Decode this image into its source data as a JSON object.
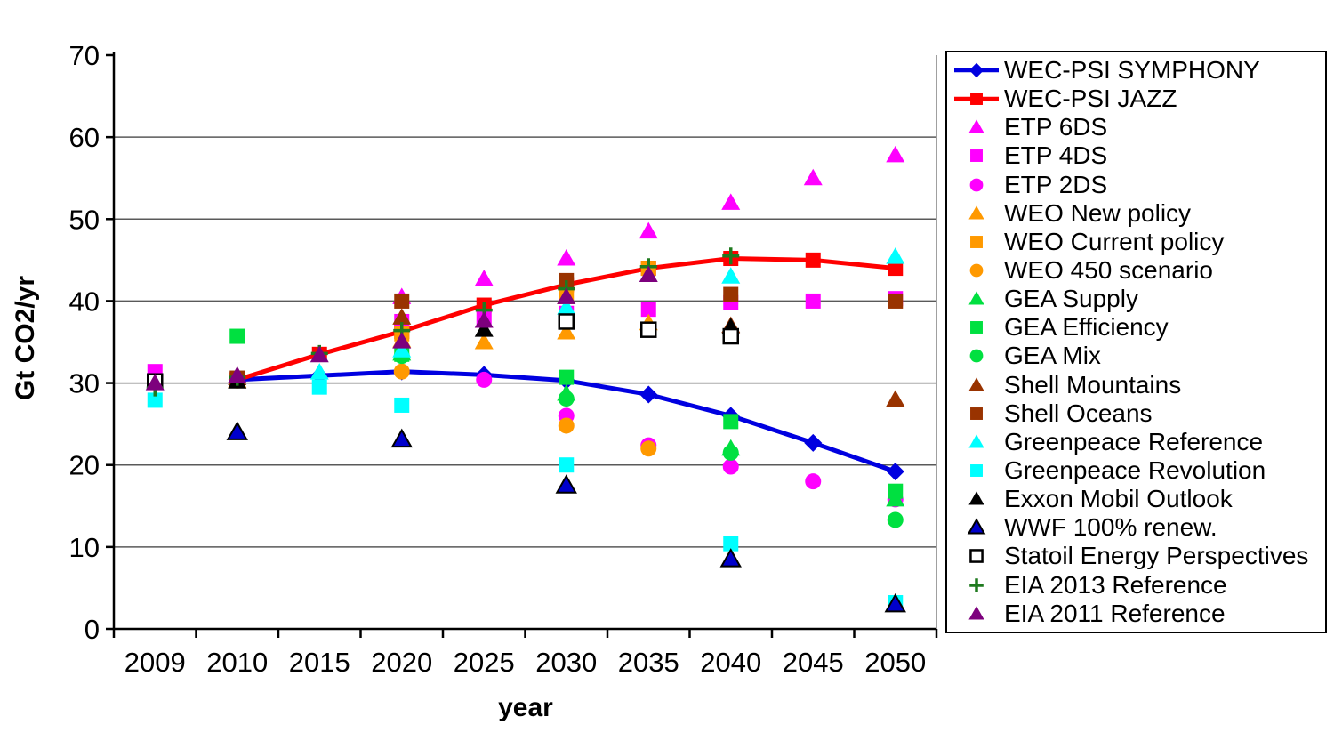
{
  "chart_data": {
    "type": "scatter",
    "title": "",
    "xlabel": "year",
    "ylabel": "Gt CO2/yr",
    "ylim": [
      0,
      70
    ],
    "yticks": [
      0,
      10,
      20,
      30,
      40,
      50,
      60,
      70
    ],
    "grid": "horizontal",
    "legend_position": "right",
    "categories": [
      "2009",
      "2010",
      "2015",
      "2020",
      "2025",
      "2030",
      "2035",
      "2040",
      "2045",
      "2050"
    ],
    "series": [
      {
        "name": "WEC-PSI SYMPHONY",
        "type": "line",
        "marker": "diamond",
        "color": "#0000E0",
        "values": [
          null,
          30.4,
          30.9,
          31.4,
          31.0,
          30.3,
          28.6,
          26.0,
          22.7,
          19.2
        ]
      },
      {
        "name": "WEC-PSI JAZZ",
        "type": "line",
        "marker": "square",
        "color": "#FF0000",
        "values": [
          null,
          30.4,
          33.5,
          36.3,
          39.5,
          42.0,
          44.0,
          45.2,
          45.0,
          44.0
        ]
      },
      {
        "name": "ETP 6DS",
        "type": "scatter",
        "marker": "triangle",
        "color": "#FF00FF",
        "values": [
          null,
          null,
          null,
          40.5,
          42.7,
          45.2,
          48.5,
          52.0,
          55.0,
          57.8
        ]
      },
      {
        "name": "ETP 4DS",
        "type": "scatter",
        "marker": "square",
        "color": "#FF00FF",
        "values": [
          31.4,
          null,
          null,
          37.5,
          38.0,
          38.5,
          39.0,
          39.8,
          40.0,
          40.3
        ]
      },
      {
        "name": "ETP 2DS",
        "type": "scatter",
        "marker": "circle",
        "color": "#FF00FF",
        "values": [
          null,
          null,
          null,
          null,
          30.4,
          26.0,
          22.4,
          19.8,
          18.0,
          15.8
        ]
      },
      {
        "name": "WEO New policy",
        "type": "scatter",
        "marker": "triangle",
        "color": "#FF9900",
        "values": [
          null,
          30.3,
          null,
          35.2,
          35.0,
          36.2,
          37.3,
          null,
          null,
          null
        ]
      },
      {
        "name": "WEO Current policy",
        "type": "scatter",
        "marker": "square",
        "color": "#FF9900",
        "values": [
          null,
          30.3,
          null,
          36.0,
          null,
          41.0,
          44.0,
          null,
          null,
          null
        ]
      },
      {
        "name": "WEO 450 scenario",
        "type": "scatter",
        "marker": "circle",
        "color": "#FF9900",
        "values": [
          null,
          30.3,
          null,
          31.4,
          null,
          24.8,
          22.0,
          null,
          null,
          null
        ]
      },
      {
        "name": "GEA Supply",
        "type": "scatter",
        "marker": "triangle",
        "color": "#00E040",
        "values": [
          null,
          null,
          null,
          33.6,
          null,
          28.7,
          null,
          22.0,
          null,
          15.8
        ]
      },
      {
        "name": "GEA Efficiency",
        "type": "scatter",
        "marker": "square",
        "color": "#00E040",
        "values": [
          null,
          35.7,
          null,
          33.5,
          null,
          30.7,
          null,
          25.3,
          null,
          16.8
        ]
      },
      {
        "name": "GEA Mix",
        "type": "scatter",
        "marker": "circle",
        "color": "#00E040",
        "values": [
          null,
          null,
          null,
          33.3,
          null,
          28.1,
          null,
          21.5,
          null,
          13.3
        ]
      },
      {
        "name": "Shell Mountains",
        "type": "scatter",
        "marker": "triangle",
        "color": "#993300",
        "values": [
          null,
          30.6,
          null,
          38.0,
          null,
          40.5,
          null,
          37.0,
          null,
          28.0
        ]
      },
      {
        "name": "Shell Oceans",
        "type": "scatter",
        "marker": "square",
        "color": "#993300",
        "values": [
          null,
          30.6,
          null,
          40.0,
          null,
          42.5,
          null,
          40.8,
          null,
          40.0
        ]
      },
      {
        "name": "Greenpeace Reference",
        "type": "scatter",
        "marker": "triangle",
        "color": "#00FFFF",
        "values": [
          null,
          null,
          31.3,
          34.0,
          null,
          39.2,
          null,
          43.0,
          null,
          45.4
        ]
      },
      {
        "name": "Greenpeace Revolution",
        "type": "scatter",
        "marker": "square",
        "color": "#00FFFF",
        "values": [
          27.9,
          null,
          29.5,
          27.3,
          null,
          20.0,
          null,
          10.4,
          null,
          3.2
        ]
      },
      {
        "name": "Exxon Mobil Outlook",
        "type": "scatter",
        "marker": "triangle",
        "color": "#000000",
        "values": [
          null,
          30.2,
          null,
          null,
          36.5,
          null,
          null,
          36.8,
          null,
          null
        ]
      },
      {
        "name": "WWF 100% renew.",
        "type": "scatter",
        "marker": "triangle-outlined",
        "color": "#0000CC",
        "values": [
          null,
          24.0,
          null,
          23.1,
          null,
          17.5,
          null,
          8.5,
          null,
          3.0
        ]
      },
      {
        "name": "Statoil Energy Perspectives",
        "type": "scatter",
        "marker": "open-square",
        "color": "#000000",
        "values": [
          30.2,
          null,
          null,
          null,
          null,
          37.5,
          36.5,
          35.7,
          null,
          null
        ]
      },
      {
        "name": "EIA 2013 Reference",
        "type": "scatter",
        "marker": "plus",
        "color": "#1F7A1F",
        "values": [
          29.4,
          30.7,
          33.6,
          36.4,
          38.9,
          41.5,
          44.2,
          45.5,
          null,
          null
        ]
      },
      {
        "name": "EIA 2011 Reference",
        "type": "scatter",
        "marker": "triangle",
        "color": "#7D007D",
        "values": [
          30.0,
          30.9,
          33.4,
          35.1,
          37.6,
          40.5,
          43.2,
          null,
          null,
          null
        ]
      }
    ],
    "style": {
      "gridline_color": "#595959",
      "axis_color": "#000000",
      "plot_border_color": "#808080",
      "background": "#FFFFFF"
    }
  }
}
